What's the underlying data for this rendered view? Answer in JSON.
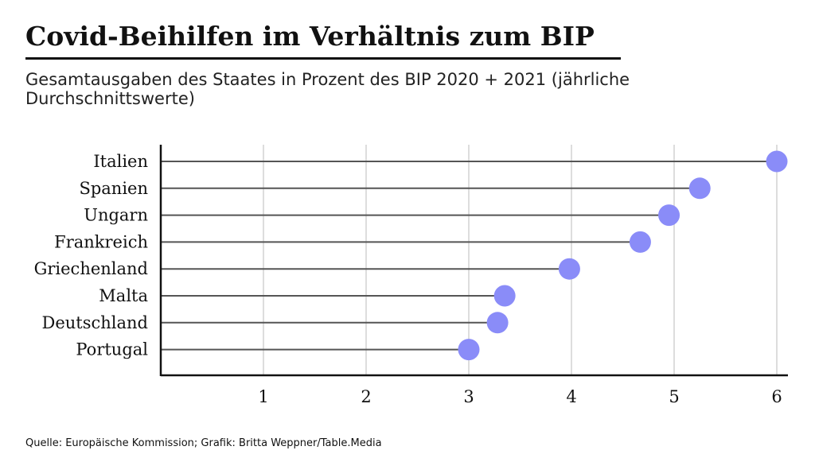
{
  "title": "Covid-Beihilfen im Verhältnis zum BIP",
  "subtitle": "Gesamtausgaben des Staates in Prozent des BIP 2020 + 2021 (jährliche Durchschnittswerte)",
  "source": "Quelle: Europäische Kommission; Grafik: Britta Weppner/Table.Media",
  "colors": {
    "dot": "#8a8cf8",
    "stem": "#555555",
    "grid": "#dddddd",
    "axis": "#111111"
  },
  "chart_data": {
    "type": "scatter",
    "style": "lollipop",
    "orientation": "horizontal",
    "categories": [
      "Italien",
      "Spanien",
      "Ungarn",
      "Frankreich",
      "Griechenland",
      "Malta",
      "Deutschland",
      "Portugal"
    ],
    "values": [
      6.0,
      5.25,
      4.95,
      4.67,
      3.98,
      3.35,
      3.28,
      3.0
    ],
    "x_ticks": [
      1,
      2,
      3,
      4,
      5,
      6
    ],
    "xlim": [
      0,
      6
    ],
    "grid": true,
    "legend": "none"
  }
}
